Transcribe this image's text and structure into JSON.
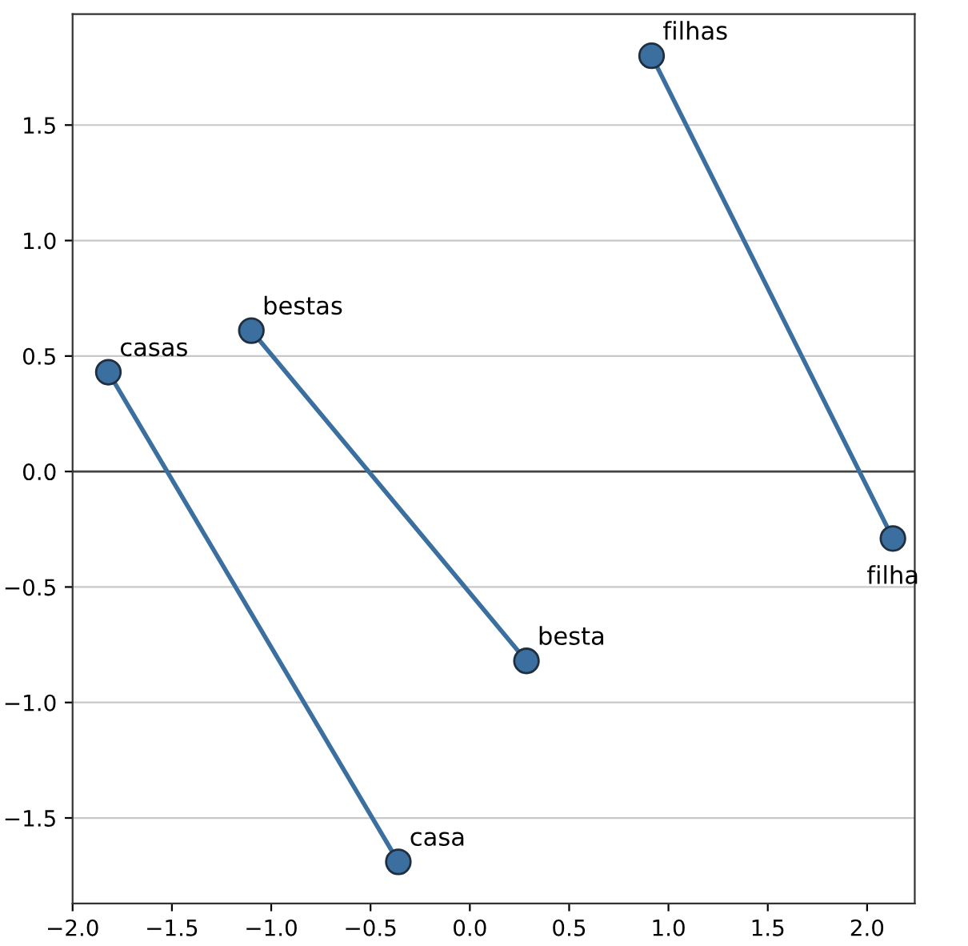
{
  "chart_data": {
    "type": "line",
    "marker": "circle",
    "line_style": "solid",
    "grid": "y",
    "legend": false,
    "series": [
      {
        "color": "#3b6fa0",
        "x": [
          0.915,
          2.13
        ],
        "values": [
          1.8,
          -0.29
        ]
      },
      {
        "color": "#3b6fa0",
        "x": [
          -1.82,
          -0.36
        ],
        "values": [
          0.43,
          -1.69
        ]
      },
      {
        "color": "#3b6fa0",
        "x": [
          -1.1,
          0.285
        ],
        "values": [
          0.61,
          -0.82
        ]
      }
    ],
    "annotations": [
      {
        "text": "filhas",
        "x": 0.915,
        "y": 1.8
      },
      {
        "text": "filha",
        "x": 2.13,
        "y": -0.29
      },
      {
        "text": "casas",
        "x": -1.82,
        "y": 0.43
      },
      {
        "text": "casa",
        "x": -0.36,
        "y": -1.69
      },
      {
        "text": "bestas",
        "x": -1.1,
        "y": 0.61
      },
      {
        "text": "besta",
        "x": 0.285,
        "y": -0.82
      }
    ],
    "ref_lines": [
      {
        "axis": "y",
        "value": 0,
        "color": "#444444"
      }
    ],
    "xlim": [
      -2.0,
      2.24
    ],
    "xticks": [
      {
        "value": -2.0,
        "label": "−2.0"
      },
      {
        "value": -1.5,
        "label": "−1.5"
      },
      {
        "value": -1.0,
        "label": "−1.0"
      },
      {
        "value": -0.5,
        "label": "−0.5"
      },
      {
        "value": 0.0,
        "label": "0.0"
      },
      {
        "value": 0.5,
        "label": "0.5"
      },
      {
        "value": 1.0,
        "label": "1.0"
      },
      {
        "value": 1.5,
        "label": "1.5"
      },
      {
        "value": 2.0,
        "label": "2.0"
      }
    ],
    "ylim": [
      -1.87,
      1.98
    ],
    "yticks": [
      {
        "value": -1.5,
        "label": "−1.5"
      },
      {
        "value": -1.0,
        "label": "−1.0"
      },
      {
        "value": -0.5,
        "label": "−0.5"
      },
      {
        "value": 0.0,
        "label": "0.0"
      },
      {
        "value": 0.5,
        "label": "0.5"
      },
      {
        "value": 1.0,
        "label": "1.0"
      },
      {
        "value": 1.5,
        "label": "1.5"
      }
    ]
  }
}
